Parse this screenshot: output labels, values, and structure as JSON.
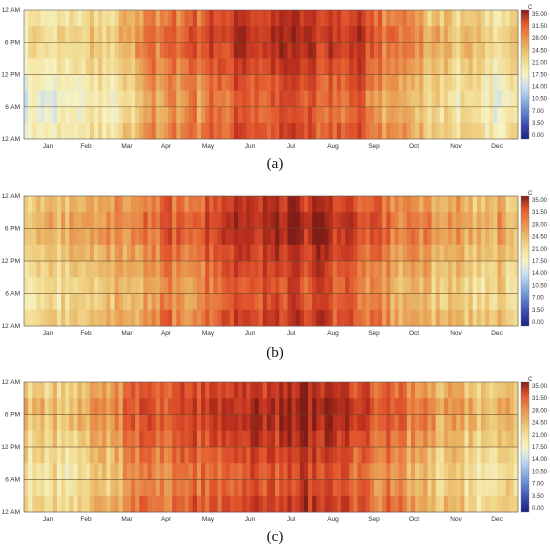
{
  "chart_data": [
    {
      "type": "heatmap",
      "caption": "(a)",
      "unit_label": "C",
      "x_tick_labels": [
        "Jan",
        "Feb",
        "Mar",
        "Apr",
        "May",
        "Jun",
        "Jul",
        "Aug",
        "Sep",
        "Oct",
        "Nov",
        "Dec"
      ],
      "y_tick_labels": [
        "12 AM",
        "6 PM",
        "12 PM",
        "6 AM",
        "12 AM"
      ],
      "colorbar_ticks": [
        "35.00",
        "31.50",
        "28.00",
        "24.50",
        "21.00",
        "17.50",
        "14.00",
        "10.50",
        "7.00",
        "3.50",
        "0.00"
      ],
      "value_range": [
        0,
        35
      ],
      "monthly_mean_temp": [
        17,
        16,
        19,
        24,
        26,
        29,
        30,
        30,
        29,
        24,
        21,
        18
      ],
      "grid": "lines at 6 AM, 12 PM, 6 PM"
    },
    {
      "type": "heatmap",
      "caption": "(b)",
      "unit_label": "C",
      "x_tick_labels": [
        "Jan",
        "Feb",
        "Mar",
        "Apr",
        "May",
        "Jun",
        "Jul",
        "Aug",
        "Sep",
        "Oct",
        "Nov",
        "Dec"
      ],
      "y_tick_labels": [
        "12 AM",
        "6 PM",
        "12 PM",
        "6 AM",
        "12 AM"
      ],
      "colorbar_ticks": [
        "35.00",
        "31.50",
        "28.00",
        "24.50",
        "21.00",
        "17.50",
        "14.00",
        "10.50",
        "7.00",
        "3.50",
        "0.00"
      ],
      "value_range": [
        0,
        35
      ],
      "monthly_mean_temp": [
        21,
        20,
        22,
        25,
        27,
        29,
        30,
        31,
        29,
        25,
        22,
        21
      ],
      "grid": "lines at 6 AM, 12 PM, 6 PM"
    },
    {
      "type": "heatmap",
      "caption": "(c)",
      "unit_label": "C",
      "x_tick_labels": [
        "Jan",
        "Feb",
        "Mar",
        "Apr",
        "May",
        "Jun",
        "Jul",
        "Aug",
        "Sep",
        "Oct",
        "Nov",
        "Dec"
      ],
      "y_tick_labels": [
        "12 AM",
        "6 PM",
        "12 PM",
        "6 AM",
        "12 AM"
      ],
      "colorbar_ticks": [
        "35.00",
        "31.50",
        "28.00",
        "24.50",
        "21.00",
        "17.50",
        "14.00",
        "10.50",
        "7.00",
        "3.50",
        "0.00"
      ],
      "value_range": [
        0,
        35
      ],
      "monthly_mean_temp": [
        20,
        20,
        23,
        27,
        29,
        30,
        31,
        32,
        30,
        26,
        22,
        20
      ],
      "grid": "lines at 6 AM, 12 PM, 6 PM"
    }
  ],
  "colors": {
    "scale": [
      "#1a237e",
      "#3949ab",
      "#5c7fc9",
      "#8fb3e0",
      "#c7def0",
      "#f6f2c2",
      "#f2dc93",
      "#e9b867",
      "#e98a48",
      "#e2572f",
      "#c0321f",
      "#7f1d16"
    ],
    "grid_line": "#6b4a2a",
    "frame": "#555555"
  }
}
